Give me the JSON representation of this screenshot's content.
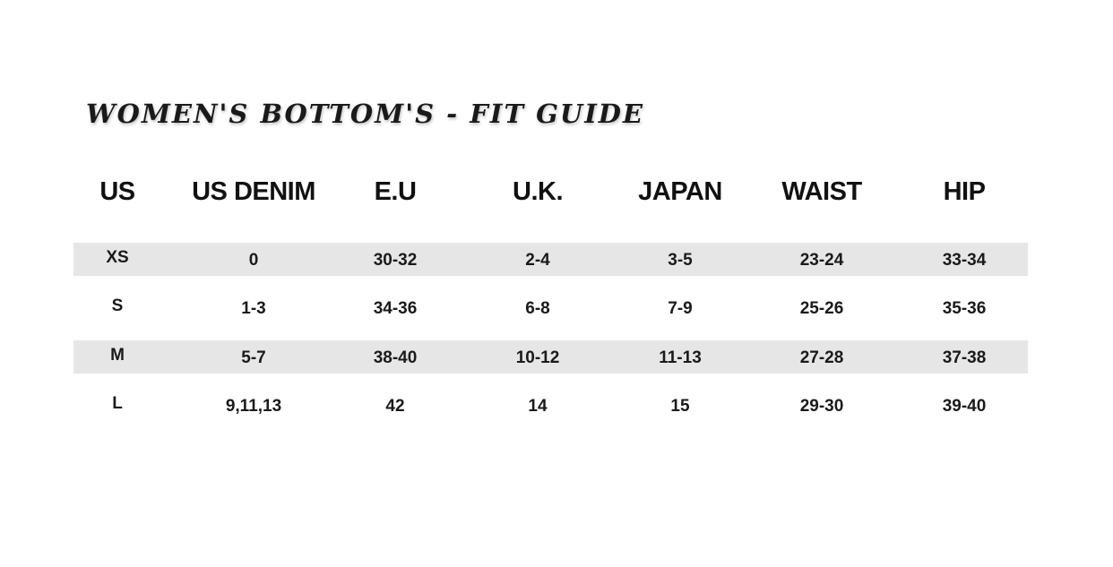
{
  "title": "WOMEN'S BOTTOM'S - FIT GUIDE",
  "table": {
    "headers": [
      "US",
      "US DENIM",
      "E.U",
      "U.K.",
      "JAPAN",
      "WAIST",
      "HIP"
    ],
    "rows": [
      [
        "XS",
        "0",
        "30-32",
        "2-4",
        "3-5",
        "23-24",
        "33-34"
      ],
      [
        "S",
        "1-3",
        "34-36",
        "6-8",
        "7-9",
        "25-26",
        "35-36"
      ],
      [
        "M",
        "5-7",
        "38-40",
        "10-12",
        "11-13",
        "27-28",
        "37-38"
      ],
      [
        "L",
        "9,11,13",
        "42",
        "14",
        "15",
        "29-30",
        "39-40"
      ]
    ],
    "stripe_color": "#e6e6e6"
  }
}
